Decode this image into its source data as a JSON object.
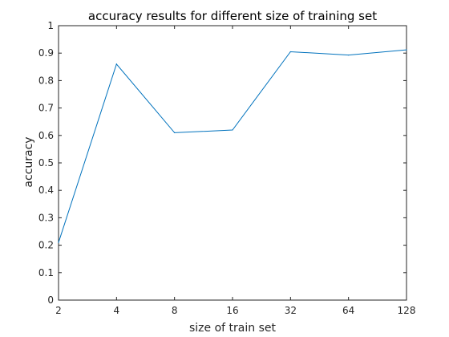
{
  "chart_data": {
    "type": "line",
    "title": "accuracy results for different size of training set",
    "xlabel": "size of train set",
    "ylabel": "accuracy",
    "x": [
      2,
      4,
      8,
      16,
      32,
      64,
      128
    ],
    "x_tick_labels": [
      "2",
      "4",
      "8",
      "16",
      "32",
      "64",
      "128"
    ],
    "x_scale": "log2",
    "xlim": [
      2,
      128
    ],
    "y_ticks": [
      0,
      0.1,
      0.2,
      0.3,
      0.4,
      0.5,
      0.6,
      0.7,
      0.8,
      0.9,
      1
    ],
    "y_tick_labels": [
      "0",
      "0.1",
      "0.2",
      "0.3",
      "0.4",
      "0.5",
      "0.6",
      "0.7",
      "0.8",
      "0.9",
      "1"
    ],
    "ylim": [
      0,
      1
    ],
    "series": [
      {
        "values": [
          0.21,
          0.86,
          0.61,
          0.62,
          0.905,
          0.893,
          0.912
        ],
        "color": "#0072bd"
      }
    ],
    "grid": false,
    "legend": "none"
  }
}
